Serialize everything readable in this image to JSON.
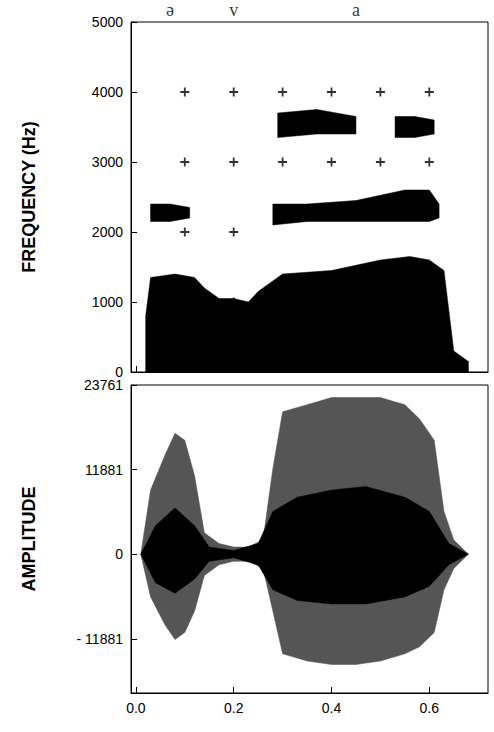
{
  "chart_data": [
    {
      "type": "spectrogram",
      "ylabel": "FREQUENCY (Hz)",
      "xlim": [
        -0.01,
        0.72
      ],
      "xticks": [
        0,
        0.2,
        0.4,
        0.6
      ],
      "ylim": [
        0,
        5000
      ],
      "yticks": [
        0,
        1000,
        2000,
        3000,
        4000,
        5000
      ],
      "tick_labels": "y",
      "annotations": [
        {
          "text": "ə",
          "x": 0.07
        },
        {
          "text": "v",
          "x": 0.2
        },
        {
          "text": "a",
          "x": 0.45
        }
      ],
      "series": [
        {
          "color": "#000000",
          "x": [
            0.02,
            0.03,
            0.08,
            0.12,
            0.14,
            0.17,
            0.2,
            0.23,
            0.25,
            0.27,
            0.3,
            0.4,
            0.5,
            0.56,
            0.6,
            0.63,
            0.65,
            0.68
          ],
          "high": [
            800,
            1350,
            1400,
            1350,
            1200,
            1050,
            1050,
            1000,
            1150,
            1250,
            1400,
            1450,
            1600,
            1650,
            1600,
            1450,
            300,
            150
          ],
          "low": [
            0,
            0,
            0,
            0,
            0,
            0,
            0,
            0,
            0,
            0,
            0,
            0,
            0,
            0,
            0,
            0,
            0,
            0
          ]
        },
        {
          "color": "#000000",
          "x": [
            0.03,
            0.07,
            0.11
          ],
          "high": [
            2400,
            2400,
            2350
          ],
          "low": [
            2150,
            2150,
            2200
          ]
        },
        {
          "color": "#000000",
          "x": [
            0.28,
            0.35,
            0.45,
            0.55,
            0.6,
            0.62
          ],
          "high": [
            2400,
            2400,
            2450,
            2600,
            2600,
            2400
          ],
          "low": [
            2100,
            2150,
            2150,
            2150,
            2150,
            2200
          ]
        },
        {
          "color": "#000000",
          "x": [
            0.29,
            0.37,
            0.45
          ],
          "high": [
            3700,
            3750,
            3650
          ],
          "low": [
            3350,
            3400,
            3400
          ]
        },
        {
          "color": "#000000",
          "x": [
            0.53,
            0.57,
            0.61
          ],
          "high": [
            3650,
            3650,
            3600
          ],
          "low": [
            3350,
            3350,
            3400
          ]
        }
      ],
      "crosses": {
        "marker": "+",
        "color": "#000000",
        "x": [
          0.1,
          0.2,
          0.3,
          0.4,
          0.5,
          0.6,
          0.1,
          0.2,
          0.3,
          0.4,
          0.5,
          0.6,
          0.1,
          0.2,
          0.2
        ],
        "y": [
          4000,
          4000,
          4000,
          4000,
          4000,
          4000,
          3000,
          3000,
          3000,
          3000,
          3000,
          3000,
          2000,
          2000,
          1000
        ]
      }
    },
    {
      "type": "waveform",
      "ylabel": "AMPLITUDE",
      "xlim": [
        -0.01,
        0.72
      ],
      "xticks": [
        {
          "value": 0,
          "label": "0.0"
        },
        0.2,
        0.4,
        0.6
      ],
      "ylim": [
        -19500,
        23761
      ],
      "yticks": [
        {
          "value": -11881,
          "label": "- 11881"
        },
        0,
        11881,
        23761
      ],
      "series": [
        {
          "color": "#555555",
          "x": [
            0.01,
            0.03,
            0.06,
            0.08,
            0.1,
            0.12,
            0.14,
            0.17,
            0.2,
            0.23,
            0.26,
            0.28,
            0.3,
            0.35,
            0.4,
            0.45,
            0.5,
            0.55,
            0.58,
            0.61,
            0.63,
            0.65,
            0.68
          ],
          "high": [
            0,
            9000,
            14000,
            17000,
            16000,
            11000,
            3000,
            1500,
            1000,
            1000,
            2000,
            12000,
            20000,
            21000,
            22000,
            22000,
            22000,
            21000,
            19000,
            16000,
            6000,
            2000,
            0
          ],
          "low": [
            0,
            -6000,
            -10000,
            -12000,
            -11000,
            -8000,
            -3000,
            -1500,
            -1000,
            -1000,
            -2000,
            -8000,
            -14000,
            -15000,
            -15500,
            -15500,
            -15000,
            -14000,
            -13000,
            -11000,
            -5000,
            -2000,
            0
          ]
        },
        {
          "color": "#000000",
          "x": [
            0.01,
            0.04,
            0.08,
            0.12,
            0.15,
            0.2,
            0.25,
            0.28,
            0.33,
            0.4,
            0.47,
            0.55,
            0.6,
            0.64,
            0.68
          ],
          "high": [
            0,
            4000,
            6500,
            4000,
            1000,
            500,
            1500,
            6000,
            8000,
            9000,
            9500,
            8000,
            6000,
            1500,
            0
          ],
          "low": [
            0,
            -4000,
            -5500,
            -3500,
            -1000,
            -500,
            -1500,
            -5000,
            -6500,
            -7000,
            -7000,
            -6000,
            -4500,
            -1500,
            0
          ]
        }
      ]
    }
  ]
}
